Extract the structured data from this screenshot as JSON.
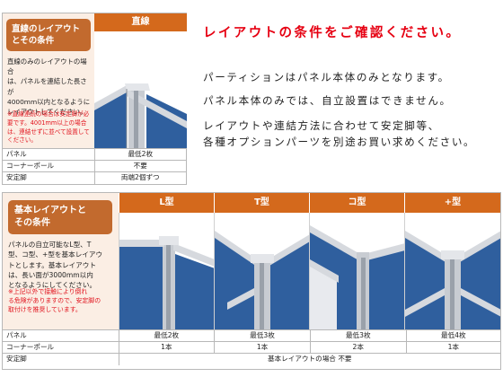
{
  "top": {
    "side_title_line1": "直線のレイアウト",
    "side_title_line2": "とその条件",
    "body_lines": [
      "直線のみのレイアウトの場合",
      "は、パネルを連結した長さが",
      "4000mm以内となるように",
      "レイアウトしてください。"
    ],
    "note_lines": [
      "※直線連続の場合は安定脚が必",
      "要です。4001mm以上の場合",
      "は、連結せずに並べて設置して",
      "ください。"
    ],
    "column_header": "直線",
    "rows": [
      {
        "label": "パネル",
        "value": "最低2枚"
      },
      {
        "label": "コーナーポール",
        "value": "不要"
      },
      {
        "label": "安定脚",
        "value": "両端2個ずつ"
      }
    ]
  },
  "conditions": {
    "title": "レイアウトの条件をご確認ください。",
    "lines": [
      "パーティションはパネル本体のみとなります。",
      "パネル本体のみでは、自立設置はできません。",
      "レイアウトや連結方法に合わせて安定脚等、",
      "各種オプションパーツを別途お買い求めください。"
    ]
  },
  "bottom": {
    "side_title_line1": "基本レイアウトと",
    "side_title_line2": "その条件",
    "body_lines": [
      "パネルの自立可能なL型、T",
      "型、コ型、+型を基本レイアウ",
      "トとします。基本レイアウト",
      "は、長い面が3000mm以内",
      "となるようにしてください。"
    ],
    "note_lines": [
      "※上記以外で接触により倒れ",
      "る危険がありますので、安定脚の",
      "取付けを推奨しています。"
    ],
    "columns": [
      {
        "header": "L型",
        "panels": "最低2枚",
        "pole": "1本"
      },
      {
        "header": "T型",
        "panels": "最低3枚",
        "pole": "1本"
      },
      {
        "header": "コ型",
        "panels": "最低3枚",
        "pole": "2本"
      },
      {
        "header": "+型",
        "panels": "最低4枚",
        "pole": "1本"
      }
    ],
    "row_labels": {
      "panels": "パネル",
      "pole": "コーナーポール",
      "stand": "安定脚"
    },
    "stand_note": "基本レイアウトの場合 不要"
  },
  "colors": {
    "accent_orange": "#d4691c",
    "title_red": "#e60012",
    "side_bg": "#fbeee4",
    "panel_blue": "#2f5f9e",
    "frame_silver": "#c8ccd2"
  }
}
